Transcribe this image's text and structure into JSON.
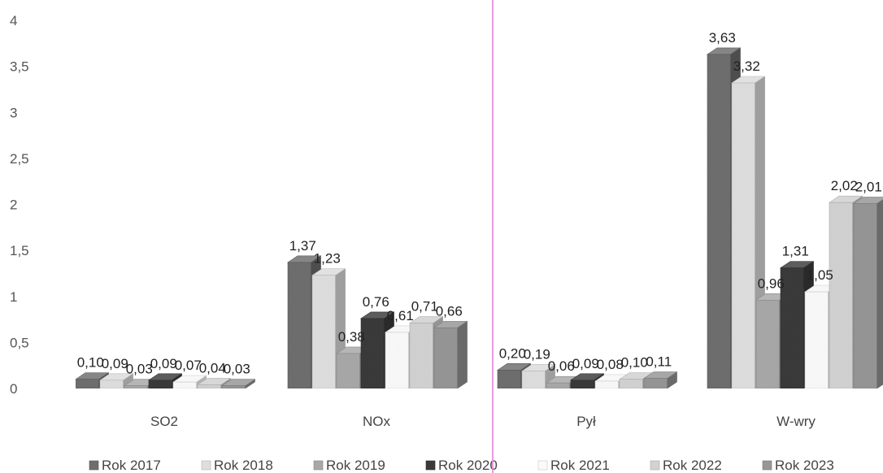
{
  "chart_data": {
    "type": "bar",
    "categories": [
      "SO2",
      "NOx",
      "Pył",
      "W-wry"
    ],
    "series": [
      {
        "name": "Rok 2017",
        "values": [
          0.1,
          1.37,
          0.2,
          3.63
        ],
        "labels": [
          "0,10",
          "1,37",
          "0,20",
          "3,63"
        ],
        "color": "#6e6e6e"
      },
      {
        "name": "Rok 2018",
        "values": [
          0.09,
          1.23,
          0.19,
          3.32
        ],
        "labels": [
          "0,09",
          "1,23",
          "0,19",
          "3,32"
        ],
        "color": "#dedede"
      },
      {
        "name": "Rok 2019",
        "values": [
          0.03,
          0.38,
          0.06,
          0.96
        ],
        "labels": [
          "0,03",
          "0,38",
          "0,06",
          "0,96"
        ],
        "color": "#a8a8a8"
      },
      {
        "name": "Rok 2020",
        "values": [
          0.09,
          0.76,
          0.09,
          1.31
        ],
        "labels": [
          "0,09",
          "0,76",
          "0,09",
          "1,31"
        ],
        "color": "#3a3a3a"
      },
      {
        "name": "Rok 2021",
        "values": [
          0.07,
          0.61,
          0.08,
          1.05
        ],
        "labels": [
          "0,07",
          "0,61",
          "0,08",
          "1,05"
        ],
        "color": "#fafafa"
      },
      {
        "name": "Rok 2022",
        "values": [
          0.04,
          0.71,
          0.1,
          2.02
        ],
        "labels": [
          "0,04",
          "0,71",
          "0,10",
          "2,02"
        ],
        "color": "#d2d2d2"
      },
      {
        "name": "Rok 2023",
        "values": [
          0.03,
          0.66,
          0.11,
          2.01
        ],
        "labels": [
          "0,03",
          "0,66",
          "0,11",
          "2,01"
        ],
        "color": "#969696"
      }
    ],
    "y_ticks": [
      "0",
      "0,5",
      "1",
      "1,5",
      "2",
      "2,5",
      "3",
      "3,5",
      "4"
    ],
    "ylim": [
      0,
      4
    ],
    "grid": false,
    "legend_position": "bottom"
  }
}
